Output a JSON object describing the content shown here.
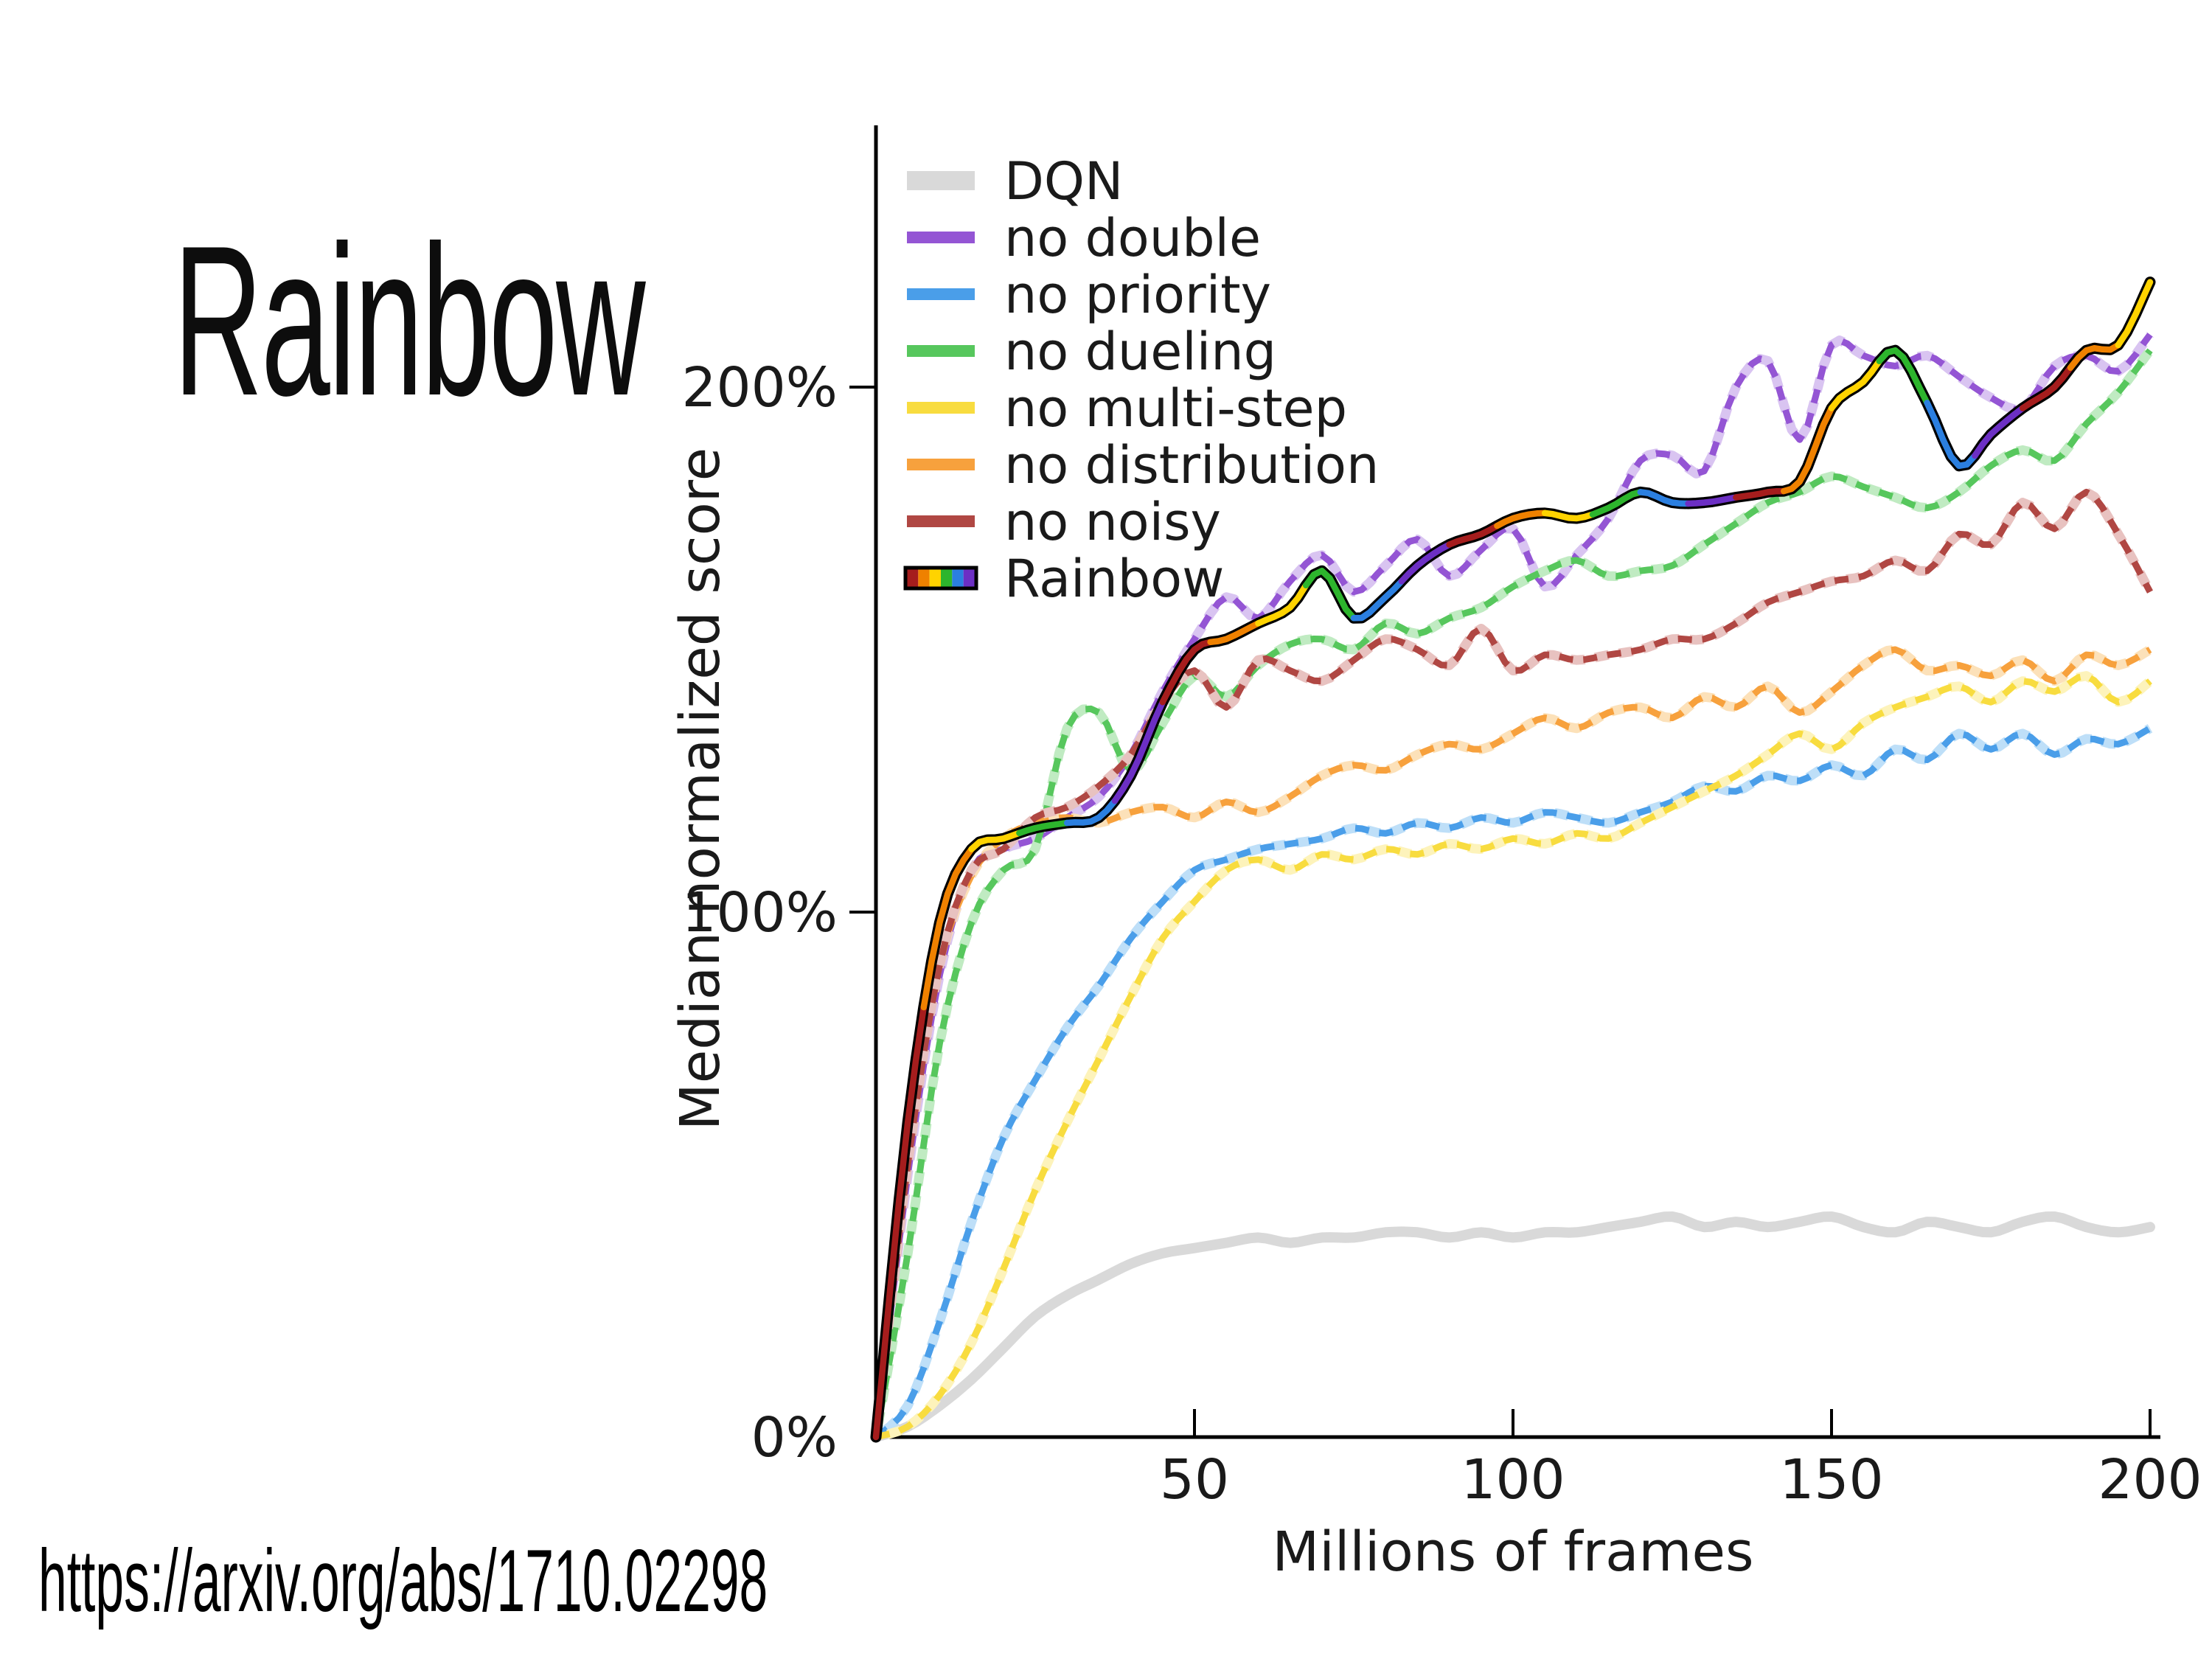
{
  "slide": {
    "title": "Rainbow",
    "source_url": "https://arxiv.org/abs/1710.02298"
  },
  "chart_data": {
    "type": "line",
    "title": "",
    "xlabel": "Millions of frames",
    "ylabel": "Median normalized score",
    "xlim": [
      0,
      200
    ],
    "ylim_percent": [
      0,
      248
    ],
    "x_ticks": [
      50,
      100,
      150,
      200
    ],
    "y_ticks": [
      {
        "value": 0,
        "label": "0%"
      },
      {
        "value": 100,
        "label": "100%"
      },
      {
        "value": 200,
        "label": "200%"
      }
    ],
    "grid": false,
    "legend_position": "upper left",
    "x": [
      0,
      5,
      10,
      15,
      20,
      25,
      30,
      35,
      40,
      45,
      50,
      55,
      60,
      65,
      70,
      75,
      80,
      85,
      90,
      95,
      100,
      105,
      110,
      115,
      120,
      125,
      130,
      135,
      140,
      145,
      150,
      155,
      160,
      165,
      170,
      175,
      180,
      185,
      190,
      195,
      200
    ],
    "series": [
      {
        "name": "DQN",
        "style": "solid-thick",
        "color": "#d9d9d9",
        "halo": null,
        "values": [
          0,
          2,
          6,
          11,
          17,
          23,
          27,
          30,
          33,
          35,
          36,
          37,
          38,
          37,
          38,
          38,
          39,
          39,
          38,
          39,
          38,
          39,
          39,
          40,
          41,
          42,
          40,
          41,
          40,
          41,
          42,
          40,
          39,
          41,
          40,
          39,
          41,
          42,
          40,
          39,
          40
        ]
      },
      {
        "name": "no double",
        "style": "dashed",
        "color": "#9455d4",
        "halo": "#d9c4f1",
        "values": [
          0,
          50,
          88,
          108,
          112,
          114,
          118,
          122,
          130,
          142,
          152,
          160,
          156,
          163,
          168,
          161,
          166,
          171,
          164,
          169,
          173,
          162,
          168,
          175,
          186,
          187,
          184,
          200,
          205,
          190,
          208,
          206,
          204,
          206,
          202,
          198,
          196,
          204,
          206,
          203,
          210
        ]
      },
      {
        "name": "no priority",
        "style": "dashed",
        "color": "#4a9ee9",
        "halo": "#bedff8",
        "values": [
          0,
          6,
          22,
          41,
          57,
          68,
          78,
          86,
          95,
          102,
          108,
          110,
          112,
          113,
          114,
          116,
          115,
          117,
          116,
          118,
          117,
          119,
          118,
          117,
          119,
          121,
          124,
          123,
          126,
          125,
          128,
          126,
          131,
          129,
          134,
          131,
          134,
          130,
          133,
          132,
          135
        ]
      },
      {
        "name": "no dueling",
        "style": "dashed",
        "color": "#57c75d",
        "halo": "#c0ebc2",
        "values": [
          0,
          35,
          75,
          98,
          108,
          112,
          135,
          138,
          127,
          136,
          145,
          141,
          147,
          151,
          152,
          150,
          155,
          153,
          156,
          158,
          162,
          165,
          167,
          164,
          165,
          166,
          170,
          174,
          178,
          180,
          183,
          181,
          179,
          177,
          180,
          185,
          188,
          186,
          193,
          199,
          207
        ]
      },
      {
        "name": "no multi-step",
        "style": "dashed",
        "color": "#f8dc3f",
        "halo": "#fdf3bb",
        "values": [
          0,
          2,
          8,
          18,
          32,
          47,
          60,
          72,
          84,
          95,
          102,
          108,
          110,
          108,
          111,
          110,
          112,
          111,
          113,
          112,
          114,
          113,
          115,
          114,
          117,
          120,
          123,
          126,
          130,
          134,
          131,
          136,
          139,
          141,
          143,
          140,
          144,
          142,
          145,
          140,
          144
        ]
      },
      {
        "name": "no distribution",
        "style": "dashed",
        "color": "#f7a13d",
        "halo": "#fce1b9",
        "values": [
          0,
          55,
          90,
          107,
          114,
          117,
          118,
          117,
          119,
          120,
          118,
          121,
          119,
          122,
          126,
          128,
          127,
          130,
          132,
          131,
          134,
          137,
          135,
          138,
          139,
          137,
          141,
          139,
          143,
          138,
          142,
          147,
          150,
          146,
          147,
          145,
          148,
          144,
          149,
          147,
          150
        ]
      },
      {
        "name": "no noisy",
        "style": "dashed",
        "color": "#b04743",
        "halo": "#e8c2c0",
        "values": [
          0,
          52,
          90,
          108,
          112,
          118,
          120,
          124,
          130,
          140,
          146,
          139,
          148,
          146,
          144,
          148,
          152,
          150,
          147,
          154,
          146,
          149,
          148,
          149,
          150,
          152,
          152,
          155,
          159,
          161,
          163,
          164,
          167,
          165,
          172,
          170,
          178,
          173,
          180,
          172,
          161
        ]
      },
      {
        "name": "Rainbow",
        "style": "multicolor",
        "color": "#000000",
        "halo": null,
        "palette": [
          "#a51d1d",
          "#ef8100",
          "#ffd300",
          "#2db52d",
          "#2b7fe0",
          "#6c2fc4"
        ],
        "values": [
          0,
          60,
          98,
          112,
          114,
          116,
          117,
          118,
          126,
          140,
          150,
          152,
          155,
          158,
          165,
          156,
          160,
          166,
          170,
          172,
          175,
          176,
          175,
          177,
          180,
          178,
          178,
          179,
          180,
          182,
          196,
          201,
          207,
          197,
          185,
          191,
          196,
          200,
          207,
          208,
          220
        ]
      }
    ]
  }
}
